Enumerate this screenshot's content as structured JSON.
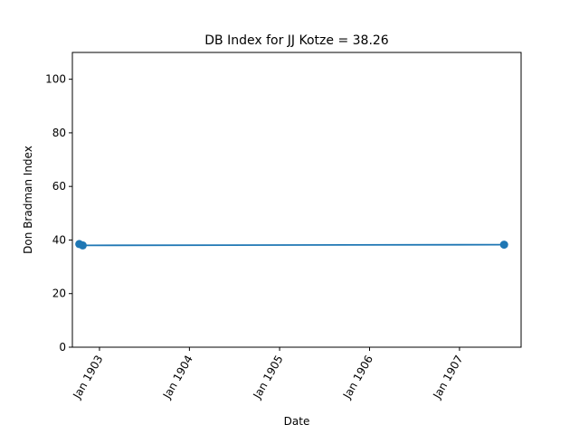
{
  "chart_data": {
    "type": "line",
    "title": "DB Index for JJ Kotze = 38.26",
    "xlabel": "Date",
    "ylabel": "Don Bradman Index",
    "xlim": [
      "1902-09-13",
      "1907-09-08"
    ],
    "ylim": [
      0,
      110
    ],
    "x_ticks": [
      {
        "date": "1903-01-01",
        "label": "Jan 1903"
      },
      {
        "date": "1904-01-01",
        "label": "Jan 1904"
      },
      {
        "date": "1905-01-01",
        "label": "Jan 1905"
      },
      {
        "date": "1906-01-01",
        "label": "Jan 1906"
      },
      {
        "date": "1907-01-01",
        "label": "Jan 1907"
      }
    ],
    "y_ticks": [
      0,
      20,
      40,
      60,
      80,
      100
    ],
    "grid": false,
    "legend": "none",
    "series": [
      {
        "color": "#1f77b4",
        "marker": "circle",
        "points": [
          {
            "x": "1902-10-11",
            "y": 38.5
          },
          {
            "x": "1902-10-25",
            "y": 38.0
          },
          {
            "x": "1907-07-01",
            "y": 38.26
          }
        ]
      }
    ]
  }
}
